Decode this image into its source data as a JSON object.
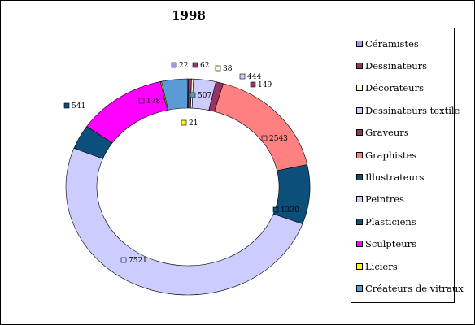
{
  "chart_data": {
    "type": "donut",
    "title": "1998",
    "legend_position": "right",
    "series": [
      {
        "name": "Céramistes",
        "value": 22,
        "color": "#9999ff"
      },
      {
        "name": "Dessinateurs",
        "value": 62,
        "color": "#993366"
      },
      {
        "name": "Décorateurs",
        "value": 38,
        "color": "#ffffcc"
      },
      {
        "name": "Dessinateurs textile",
        "value": 444,
        "color": "#ccccff"
      },
      {
        "name": "Graveurs",
        "value": 149,
        "color": "#993366"
      },
      {
        "name": "Graphistes",
        "value": 2543,
        "color": "#ff8080"
      },
      {
        "name": "Illustrateurs",
        "value": 1330,
        "color": "#0b4f7a"
      },
      {
        "name": "Peintres",
        "value": 7521,
        "color": "#ccccff"
      },
      {
        "name": "Plasticiens",
        "value": 541,
        "color": "#0b4f7a"
      },
      {
        "name": "Sculpteurs",
        "value": 1787,
        "color": "#ff00ff"
      },
      {
        "name": "Liciers",
        "value": 21,
        "color": "#ffff00"
      },
      {
        "name": "Créateurs de vitraux",
        "value": 507,
        "color": "#5b9bd5"
      }
    ]
  }
}
